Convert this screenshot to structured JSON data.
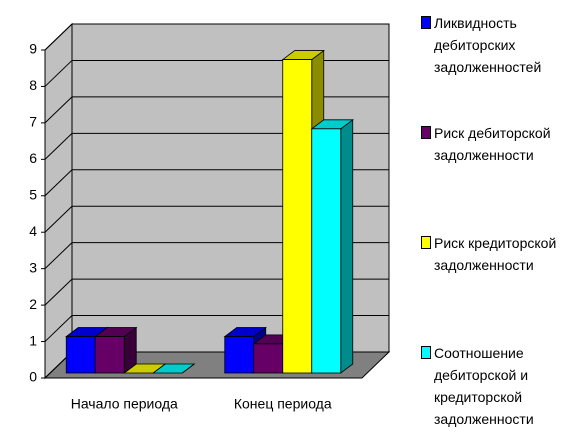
{
  "chart_data": {
    "type": "bar3d",
    "categories": [
      "Начало периода",
      "Конец периода"
    ],
    "series": [
      {
        "name": "Ликвидность дебиторских задолженностей",
        "color": "#0000ff",
        "values": [
          1,
          1
        ]
      },
      {
        "name": "Риск дебиторской задолженности",
        "color": "#660066",
        "values": [
          1,
          0.8
        ]
      },
      {
        "name": "Риск кредиторской задолженности",
        "color": "#ffff00",
        "values": [
          0,
          8.6
        ]
      },
      {
        "name": "Соотношение дебиторской и кредиторской задолженности",
        "color": "#00ffff",
        "values": [
          0,
          6.7
        ]
      }
    ],
    "ylim": [
      0,
      9
    ],
    "yticks": [
      0,
      1,
      2,
      3,
      4,
      5,
      6,
      7,
      8,
      9
    ],
    "grid": true,
    "legend": "right"
  }
}
